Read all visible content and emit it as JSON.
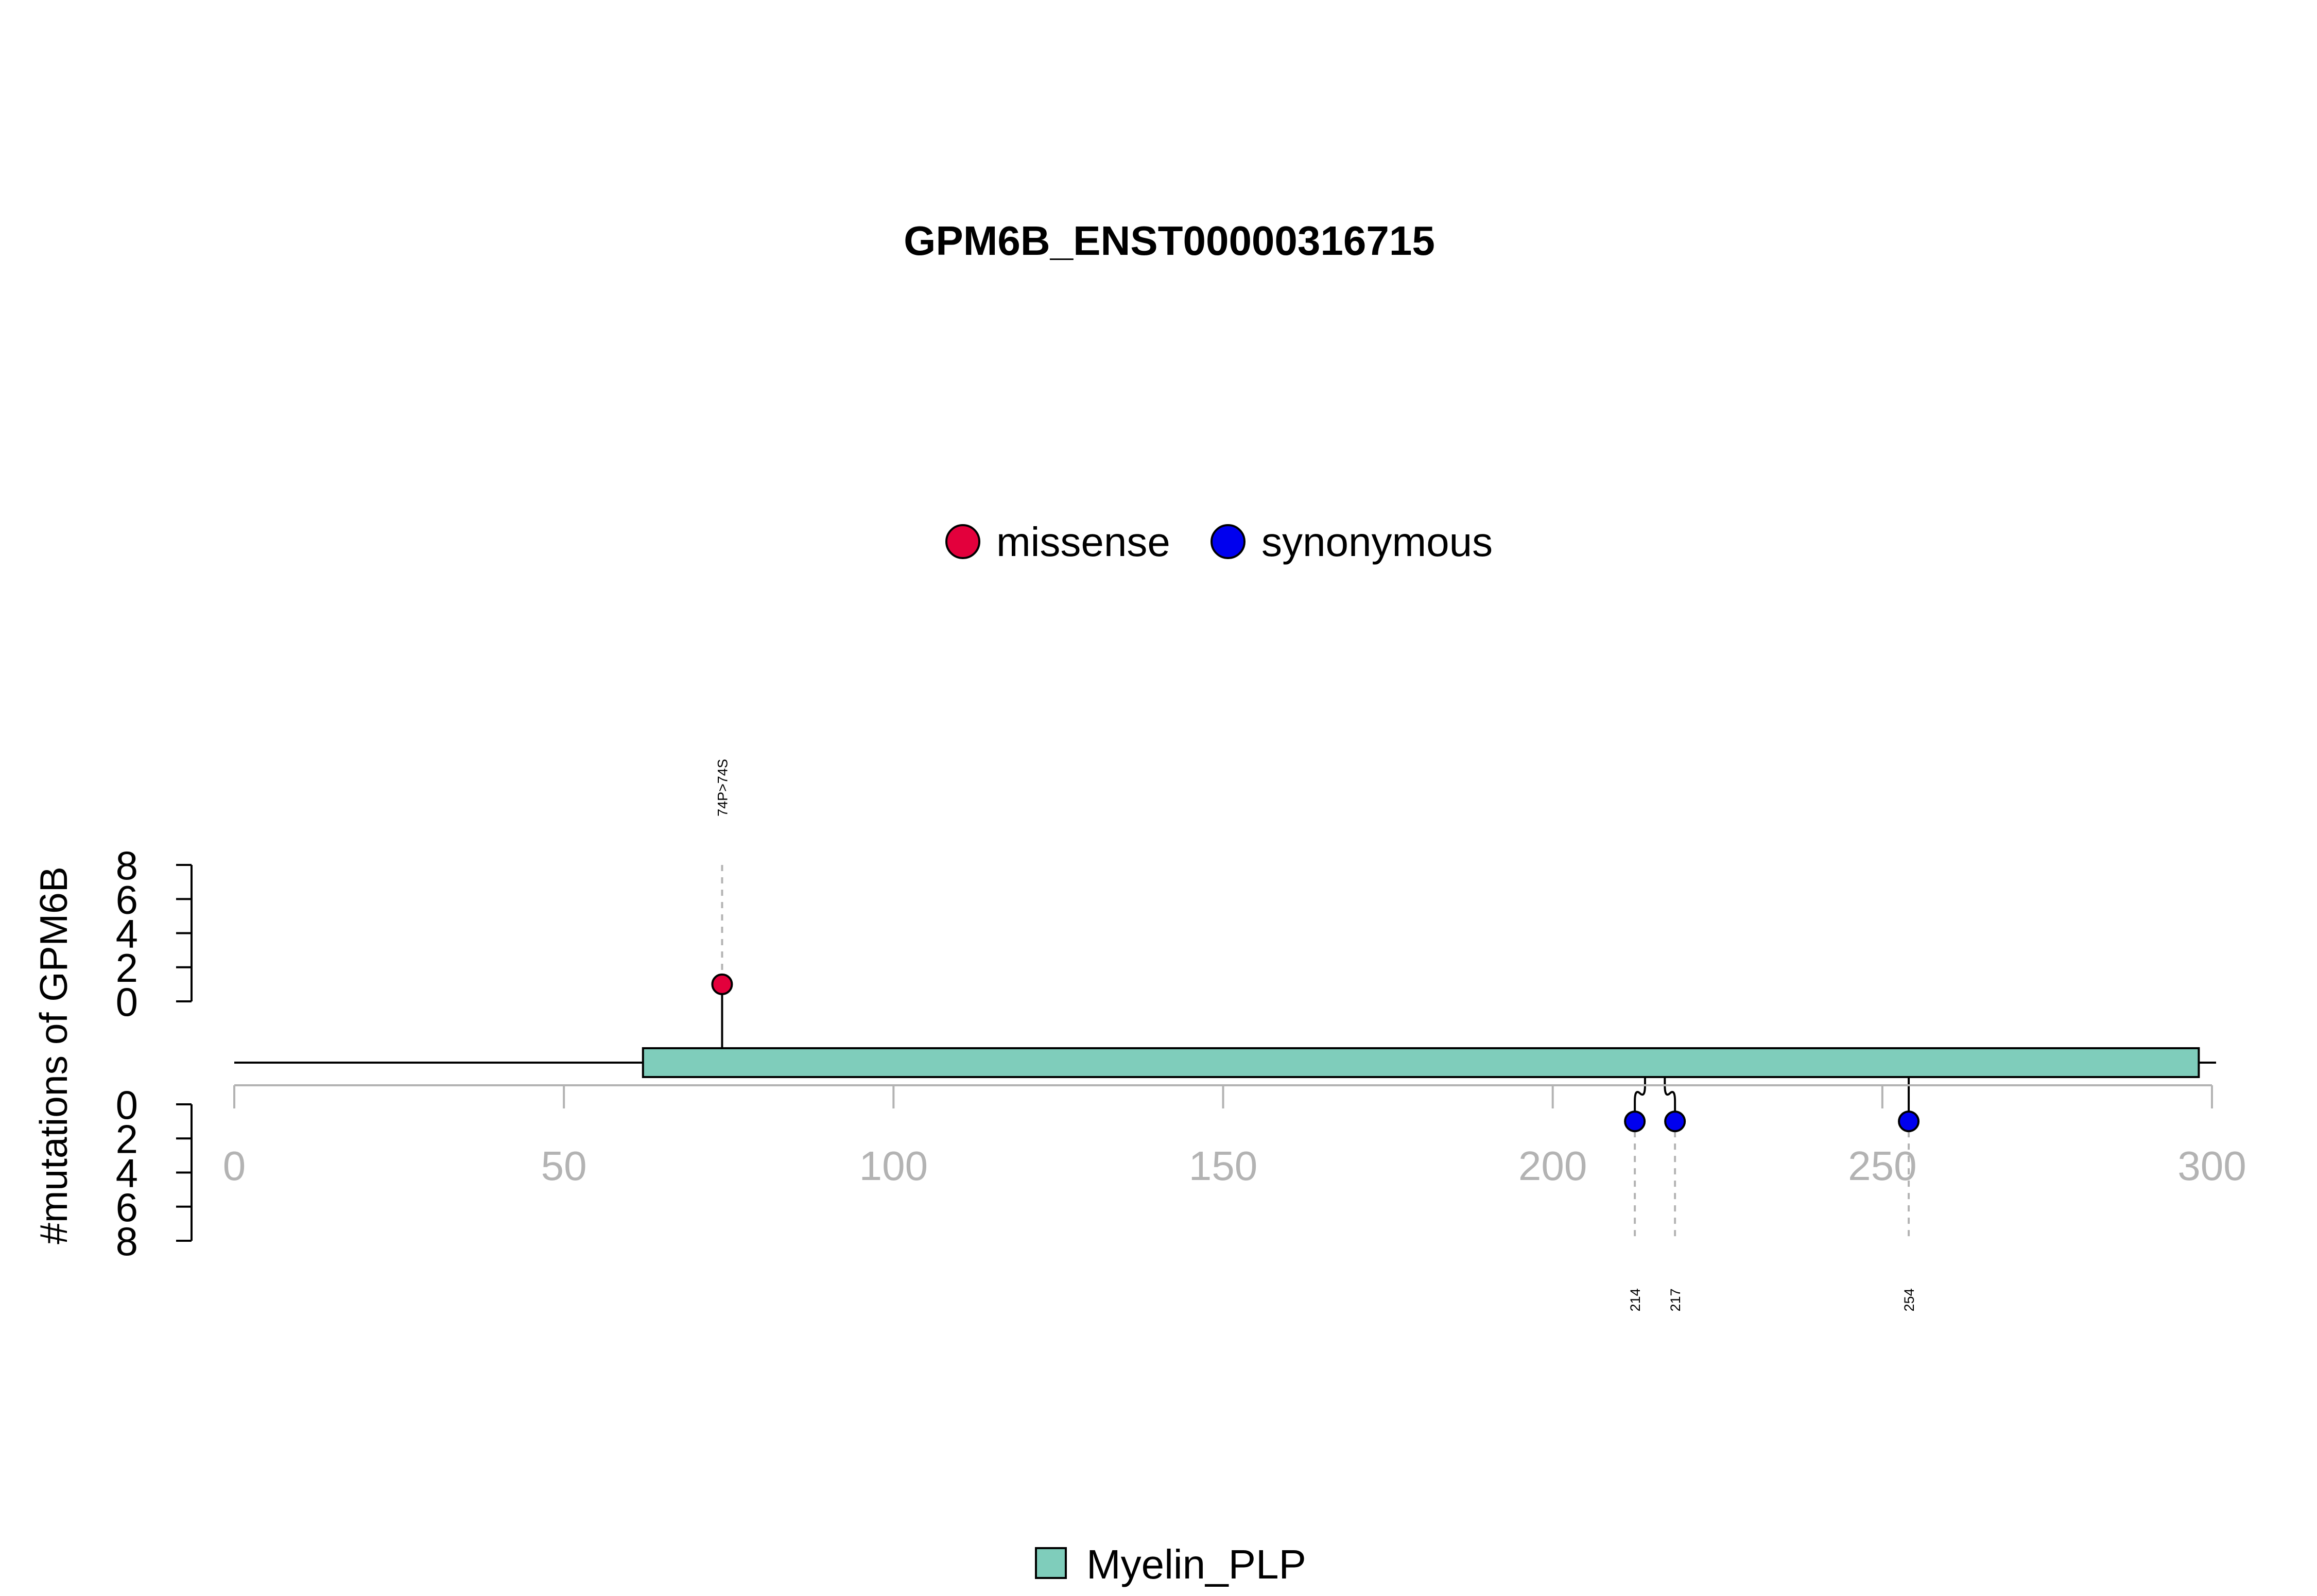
{
  "chart_data": {
    "type": "lollipop",
    "title": "GPM6B_ENST00000316715",
    "ylabel": "#mutations of GPM6B",
    "xlim": [
      0,
      300
    ],
    "x_ticks": [
      "0",
      "50",
      "100",
      "150",
      "200",
      "250",
      "300"
    ],
    "y_ticks": [
      "0",
      "2",
      "4",
      "6",
      "8"
    ],
    "ylim": [
      0,
      8
    ],
    "protein_length": 300,
    "legend": {
      "mutation_types": [
        {
          "name": "missense",
          "color": "#e3003c"
        },
        {
          "name": "synonymous",
          "color": "#0000ee"
        }
      ],
      "domains": [
        {
          "name": "Myelin_PLP",
          "color": "#7fcdbb"
        }
      ]
    },
    "domains": [
      {
        "name": "Myelin_PLP",
        "start": 62,
        "end": 298
      }
    ],
    "mutations_top": [
      {
        "position": 74,
        "count": 1,
        "type": "missense",
        "label": "74P>74S"
      }
    ],
    "mutations_bottom": [
      {
        "position": 214,
        "count": 1,
        "type": "synonymous",
        "label": "214"
      },
      {
        "position": 217,
        "count": 1,
        "type": "synonymous",
        "label": "217"
      },
      {
        "position": 254,
        "count": 1,
        "type": "synonymous",
        "label": "254"
      }
    ]
  }
}
